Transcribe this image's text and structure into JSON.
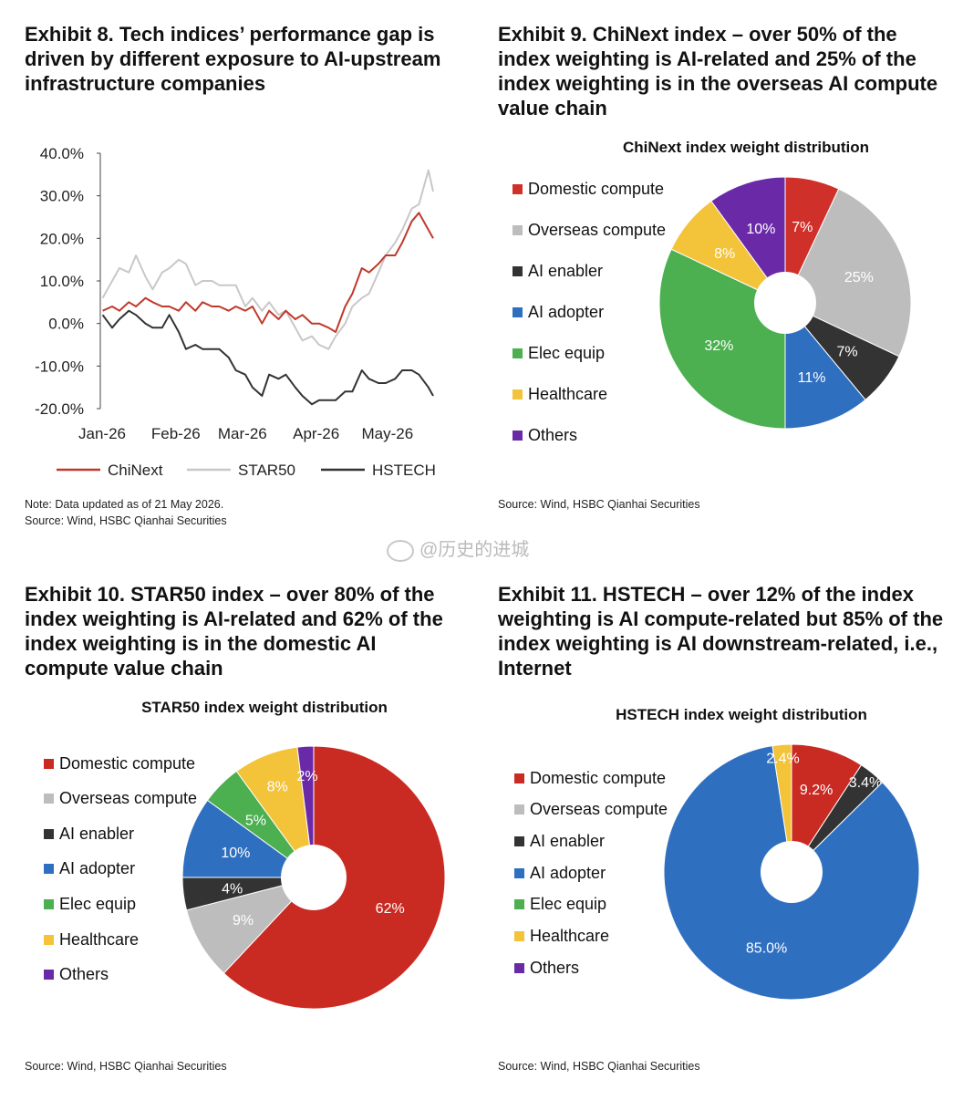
{
  "watermark": "@历史的进城",
  "exhibits": [
    {
      "title": "Exhibit 8. Tech indices’ performance gap is driven by different exposure to AI-upstream infrastructure companies",
      "note": "Note: Data updated as of 21 May 2026.",
      "source": "Source: Wind, HSBC Qianhai Securities"
    },
    {
      "title": "Exhibit 9. ChiNext index – over 50% of the index weighting is AI-related and 25% of the index weighting is in the overseas AI compute value chain",
      "source": "Source: Wind, HSBC Qianhai Securities"
    },
    {
      "title": "Exhibit 10. STAR50 index – over 80% of the index weighting is AI-related and 62% of the index weighting is in the domestic AI compute value chain",
      "source": "Source: Wind, HSBC Qianhai Securities"
    },
    {
      "title": "Exhibit 11. HSTECH – over 12% of the index weighting is AI compute-related but 85% of the index weighting is AI downstream-related, i.e., Internet",
      "source": "Source: Wind, HSBC Qianhai Securities"
    }
  ],
  "chart_data": [
    {
      "type": "line",
      "title": "",
      "ylim": [
        -20,
        40
      ],
      "y_ticks": [
        "40.0%",
        "30.0%",
        "20.0%",
        "10.0%",
        "0.0%",
        "-10.0%",
        "-20.0%"
      ],
      "y_tick_values": [
        40,
        30,
        20,
        10,
        0,
        -10,
        -20
      ],
      "x_ticks": [
        "Jan-26",
        "Feb-26",
        "Mar-26",
        "Apr-26",
        "May-26"
      ],
      "x_tick_values": [
        "2026-01-01",
        "2026-02-01",
        "2026-03-01",
        "2026-04-01",
        "2026-05-01"
      ],
      "x_range": [
        "2026-01-01",
        "2026-05-21"
      ],
      "grid": false,
      "legend_position": "bottom",
      "series": [
        {
          "name": "ChiNext",
          "color": "#c0392b",
          "points": [
            [
              "2026-01-02",
              3
            ],
            [
              "2026-01-06",
              4
            ],
            [
              "2026-01-09",
              3
            ],
            [
              "2026-01-13",
              5
            ],
            [
              "2026-01-16",
              4
            ],
            [
              "2026-01-20",
              6
            ],
            [
              "2026-01-23",
              5
            ],
            [
              "2026-01-27",
              4
            ],
            [
              "2026-01-30",
              4
            ],
            [
              "2026-02-03",
              3
            ],
            [
              "2026-02-06",
              5
            ],
            [
              "2026-02-10",
              3
            ],
            [
              "2026-02-13",
              5
            ],
            [
              "2026-02-17",
              4
            ],
            [
              "2026-02-20",
              4
            ],
            [
              "2026-02-24",
              3
            ],
            [
              "2026-02-27",
              4
            ],
            [
              "2026-03-03",
              3
            ],
            [
              "2026-03-06",
              4
            ],
            [
              "2026-03-10",
              0
            ],
            [
              "2026-03-13",
              3
            ],
            [
              "2026-03-17",
              1
            ],
            [
              "2026-03-20",
              3
            ],
            [
              "2026-03-24",
              1
            ],
            [
              "2026-03-27",
              2
            ],
            [
              "2026-03-31",
              0
            ],
            [
              "2026-04-03",
              0
            ],
            [
              "2026-04-07",
              -1
            ],
            [
              "2026-04-10",
              -2
            ],
            [
              "2026-04-14",
              4
            ],
            [
              "2026-04-17",
              7
            ],
            [
              "2026-04-21",
              13
            ],
            [
              "2026-04-24",
              12
            ],
            [
              "2026-04-28",
              14
            ],
            [
              "2026-05-01",
              16
            ],
            [
              "2026-05-05",
              16
            ],
            [
              "2026-05-08",
              19
            ],
            [
              "2026-05-12",
              24
            ],
            [
              "2026-05-15",
              26
            ],
            [
              "2026-05-19",
              22
            ],
            [
              "2026-05-21",
              20
            ]
          ]
        },
        {
          "name": "STAR50",
          "color": "#c8c8c8",
          "points": [
            [
              "2026-01-02",
              6
            ],
            [
              "2026-01-06",
              10
            ],
            [
              "2026-01-09",
              13
            ],
            [
              "2026-01-13",
              12
            ],
            [
              "2026-01-16",
              16
            ],
            [
              "2026-01-20",
              11
            ],
            [
              "2026-01-23",
              8
            ],
            [
              "2026-01-27",
              12
            ],
            [
              "2026-01-30",
              13
            ],
            [
              "2026-02-03",
              15
            ],
            [
              "2026-02-06",
              14
            ],
            [
              "2026-02-10",
              9
            ],
            [
              "2026-02-13",
              10
            ],
            [
              "2026-02-17",
              10
            ],
            [
              "2026-02-20",
              9
            ],
            [
              "2026-02-24",
              9
            ],
            [
              "2026-02-27",
              9
            ],
            [
              "2026-03-03",
              4
            ],
            [
              "2026-03-06",
              6
            ],
            [
              "2026-03-10",
              3
            ],
            [
              "2026-03-13",
              5
            ],
            [
              "2026-03-17",
              2
            ],
            [
              "2026-03-20",
              3
            ],
            [
              "2026-03-24",
              -1
            ],
            [
              "2026-03-27",
              -4
            ],
            [
              "2026-03-31",
              -3
            ],
            [
              "2026-04-03",
              -5
            ],
            [
              "2026-04-07",
              -6
            ],
            [
              "2026-04-10",
              -3
            ],
            [
              "2026-04-14",
              0
            ],
            [
              "2026-04-17",
              4
            ],
            [
              "2026-04-21",
              6
            ],
            [
              "2026-04-24",
              7
            ],
            [
              "2026-04-28",
              12
            ],
            [
              "2026-05-01",
              16
            ],
            [
              "2026-05-05",
              19
            ],
            [
              "2026-05-08",
              22
            ],
            [
              "2026-05-12",
              27
            ],
            [
              "2026-05-15",
              28
            ],
            [
              "2026-05-19",
              36
            ],
            [
              "2026-05-21",
              31
            ]
          ]
        },
        {
          "name": "HSTECH",
          "color": "#333333",
          "points": [
            [
              "2026-01-02",
              2
            ],
            [
              "2026-01-06",
              -1
            ],
            [
              "2026-01-09",
              1
            ],
            [
              "2026-01-13",
              3
            ],
            [
              "2026-01-16",
              2
            ],
            [
              "2026-01-20",
              0
            ],
            [
              "2026-01-23",
              -1
            ],
            [
              "2026-01-27",
              -1
            ],
            [
              "2026-01-30",
              2
            ],
            [
              "2026-02-03",
              -2
            ],
            [
              "2026-02-06",
              -6
            ],
            [
              "2026-02-10",
              -5
            ],
            [
              "2026-02-13",
              -6
            ],
            [
              "2026-02-17",
              -6
            ],
            [
              "2026-02-20",
              -6
            ],
            [
              "2026-02-24",
              -8
            ],
            [
              "2026-02-27",
              -11
            ],
            [
              "2026-03-03",
              -12
            ],
            [
              "2026-03-06",
              -15
            ],
            [
              "2026-03-10",
              -17
            ],
            [
              "2026-03-13",
              -12
            ],
            [
              "2026-03-17",
              -13
            ],
            [
              "2026-03-20",
              -12
            ],
            [
              "2026-03-24",
              -15
            ],
            [
              "2026-03-27",
              -17
            ],
            [
              "2026-03-31",
              -19
            ],
            [
              "2026-04-03",
              -18
            ],
            [
              "2026-04-07",
              -18
            ],
            [
              "2026-04-10",
              -18
            ],
            [
              "2026-04-14",
              -16
            ],
            [
              "2026-04-17",
              -16
            ],
            [
              "2026-04-21",
              -11
            ],
            [
              "2026-04-24",
              -13
            ],
            [
              "2026-04-28",
              -14
            ],
            [
              "2026-05-01",
              -14
            ],
            [
              "2026-05-05",
              -13
            ],
            [
              "2026-05-08",
              -11
            ],
            [
              "2026-05-12",
              -11
            ],
            [
              "2026-05-15",
              -12
            ],
            [
              "2026-05-19",
              -15
            ],
            [
              "2026-05-21",
              -17
            ]
          ]
        }
      ]
    },
    {
      "type": "pie",
      "donut": true,
      "title": "ChiNext index weight distribution",
      "legend_position": "left",
      "slices": [
        {
          "name": "Domestic compute",
          "value": 7,
          "color": "#d0302a",
          "label": "7%"
        },
        {
          "name": "Overseas compute",
          "value": 25,
          "color": "#bdbdbd",
          "label": "25%"
        },
        {
          "name": "AI enabler",
          "value": 7,
          "color": "#333333",
          "label": "7%"
        },
        {
          "name": "AI adopter",
          "value": 11,
          "color": "#2f6fc0",
          "label": "11%"
        },
        {
          "name": "Elec equip",
          "value": 32,
          "color": "#4caf50",
          "label": "32%"
        },
        {
          "name": "Healthcare",
          "value": 8,
          "color": "#f3c339",
          "label": "8%"
        },
        {
          "name": "Others",
          "value": 10,
          "color": "#6a2aa8",
          "label": "10%"
        }
      ]
    },
    {
      "type": "pie",
      "donut": true,
      "title": "STAR50 index weight distribution",
      "legend_position": "left",
      "slices": [
        {
          "name": "Domestic compute",
          "value": 62,
          "color": "#c92a22",
          "label": "62%"
        },
        {
          "name": "Overseas compute",
          "value": 9,
          "color": "#bdbdbd",
          "label": "9%"
        },
        {
          "name": "AI enabler",
          "value": 4,
          "color": "#333333",
          "label": "4%"
        },
        {
          "name": "AI adopter",
          "value": 10,
          "color": "#2f6fc0",
          "label": "10%"
        },
        {
          "name": "Elec equip",
          "value": 5,
          "color": "#4caf50",
          "label": "5%"
        },
        {
          "name": "Healthcare",
          "value": 8,
          "color": "#f3c339",
          "label": "8%"
        },
        {
          "name": "Others",
          "value": 2,
          "color": "#6a2aa8",
          "label": "2%"
        }
      ]
    },
    {
      "type": "pie",
      "donut": true,
      "title": "HSTECH index weight distribution",
      "legend_position": "left",
      "slices": [
        {
          "name": "Domestic compute",
          "value": 9.2,
          "color": "#c92a22",
          "label": "9.2%"
        },
        {
          "name": "Overseas compute",
          "value": 0,
          "color": "#bdbdbd",
          "label": ""
        },
        {
          "name": "AI enabler",
          "value": 3.4,
          "color": "#333333",
          "label": "3.4%"
        },
        {
          "name": "AI adopter",
          "value": 85.0,
          "color": "#2f6fc0",
          "label": "85.0%"
        },
        {
          "name": "Elec equip",
          "value": 0,
          "color": "#4caf50",
          "label": ""
        },
        {
          "name": "Healthcare",
          "value": 2.4,
          "color": "#f3c339",
          "label": "2.4%"
        },
        {
          "name": "Others",
          "value": 0,
          "color": "#6a2aa8",
          "label": ""
        }
      ]
    }
  ]
}
